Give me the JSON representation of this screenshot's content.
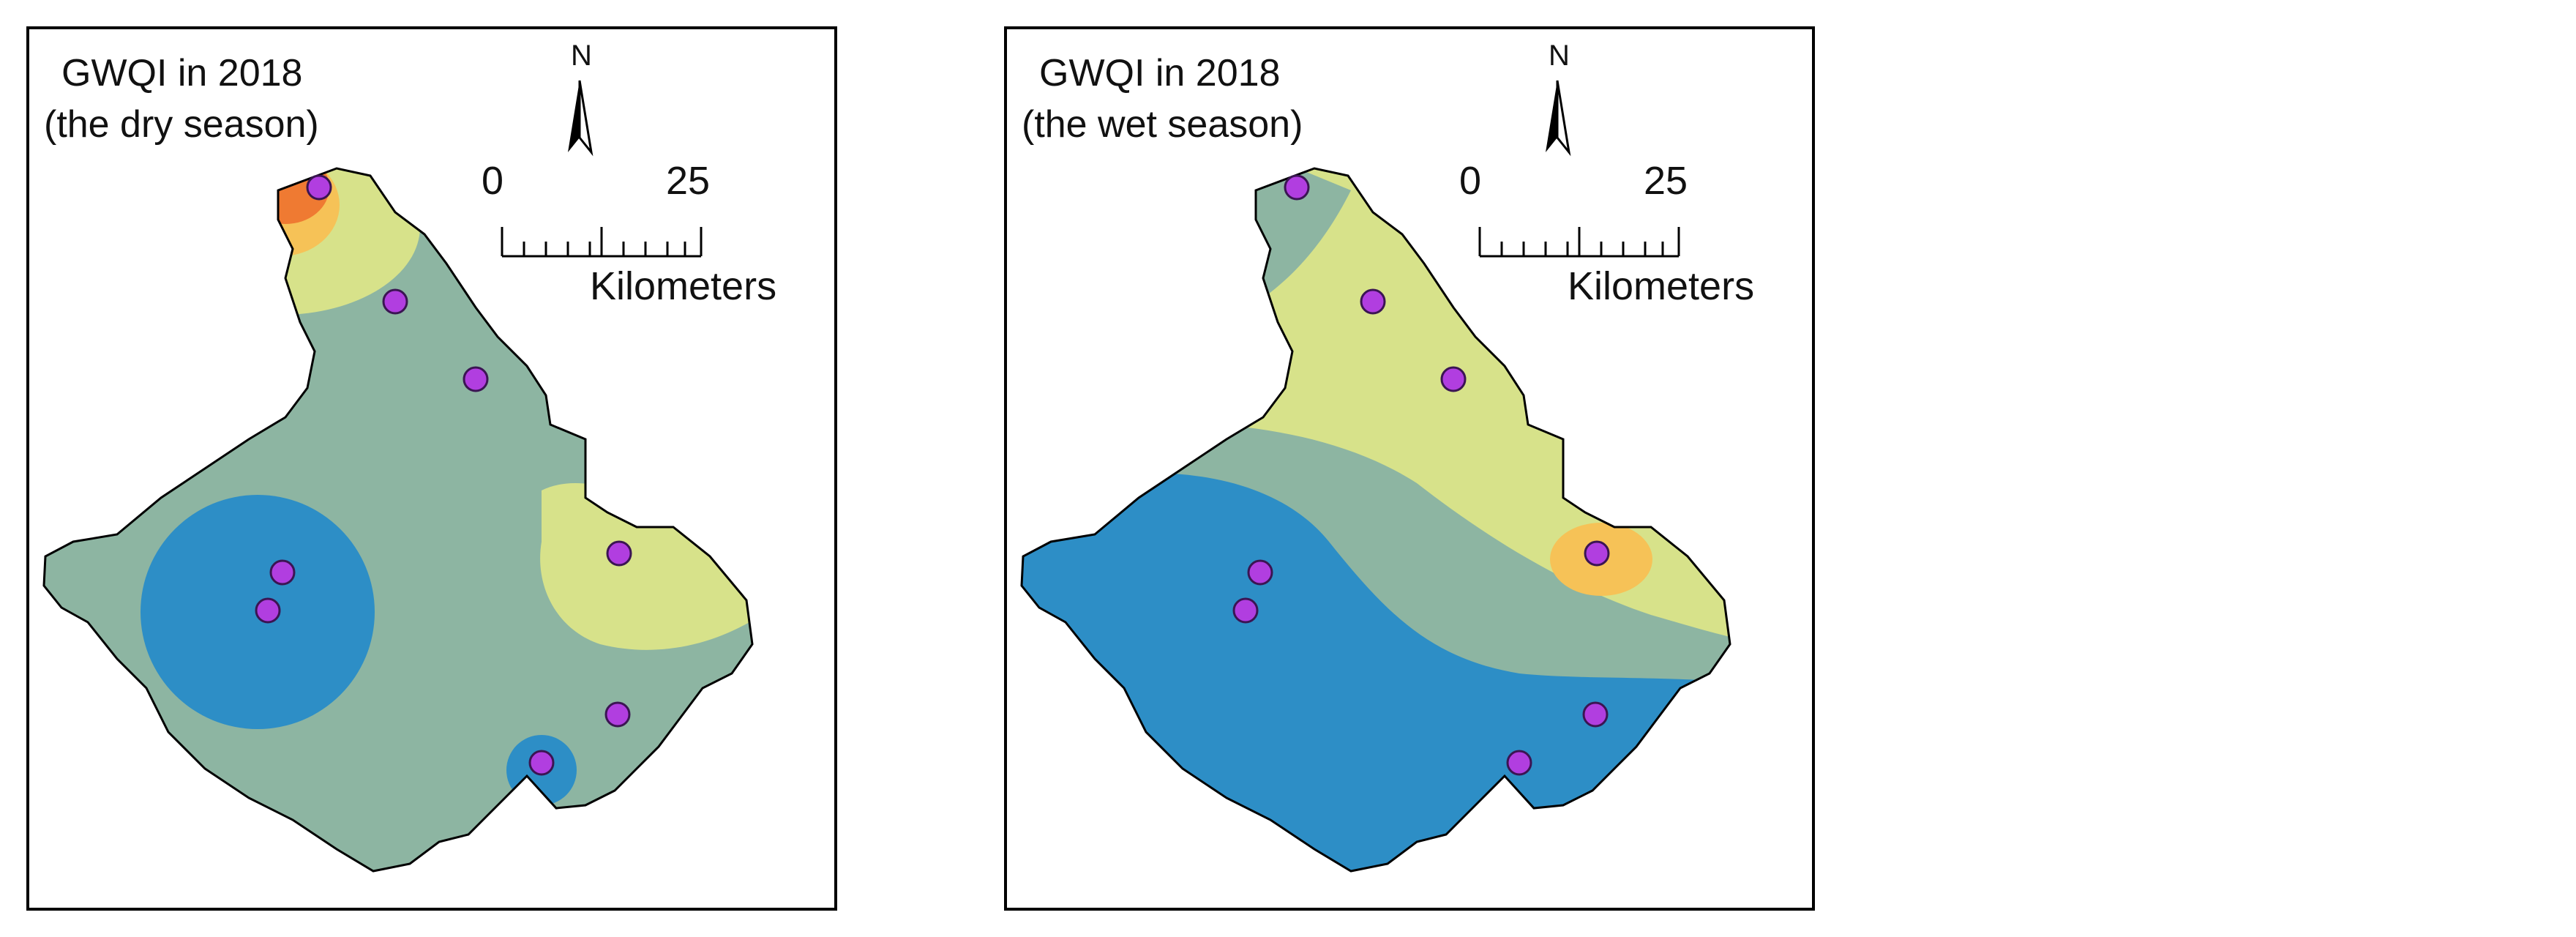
{
  "maps": [
    {
      "id": "dry",
      "title_line1": "GWQI in 2018",
      "title_line2": "(the dry season)",
      "north_label": "N",
      "scale_start": "0",
      "scale_end": "25",
      "scale_unit": "Kilometers"
    },
    {
      "id": "wet",
      "title_line1": "GWQI in 2018",
      "title_line2": "(the wet season)",
      "north_label": "N",
      "scale_start": "0",
      "scale_end": "25",
      "scale_unit": "Kilometers"
    }
  ],
  "colors": {
    "class_blue": "#2d8ec6",
    "class_grey_green": "#8db5a2",
    "class_light_yellow": "#d7e28a",
    "class_yellow_orange": "#f6c257",
    "class_orange": "#ef7a32",
    "sample_point": "#b13ee0",
    "outline": "#000000"
  }
}
